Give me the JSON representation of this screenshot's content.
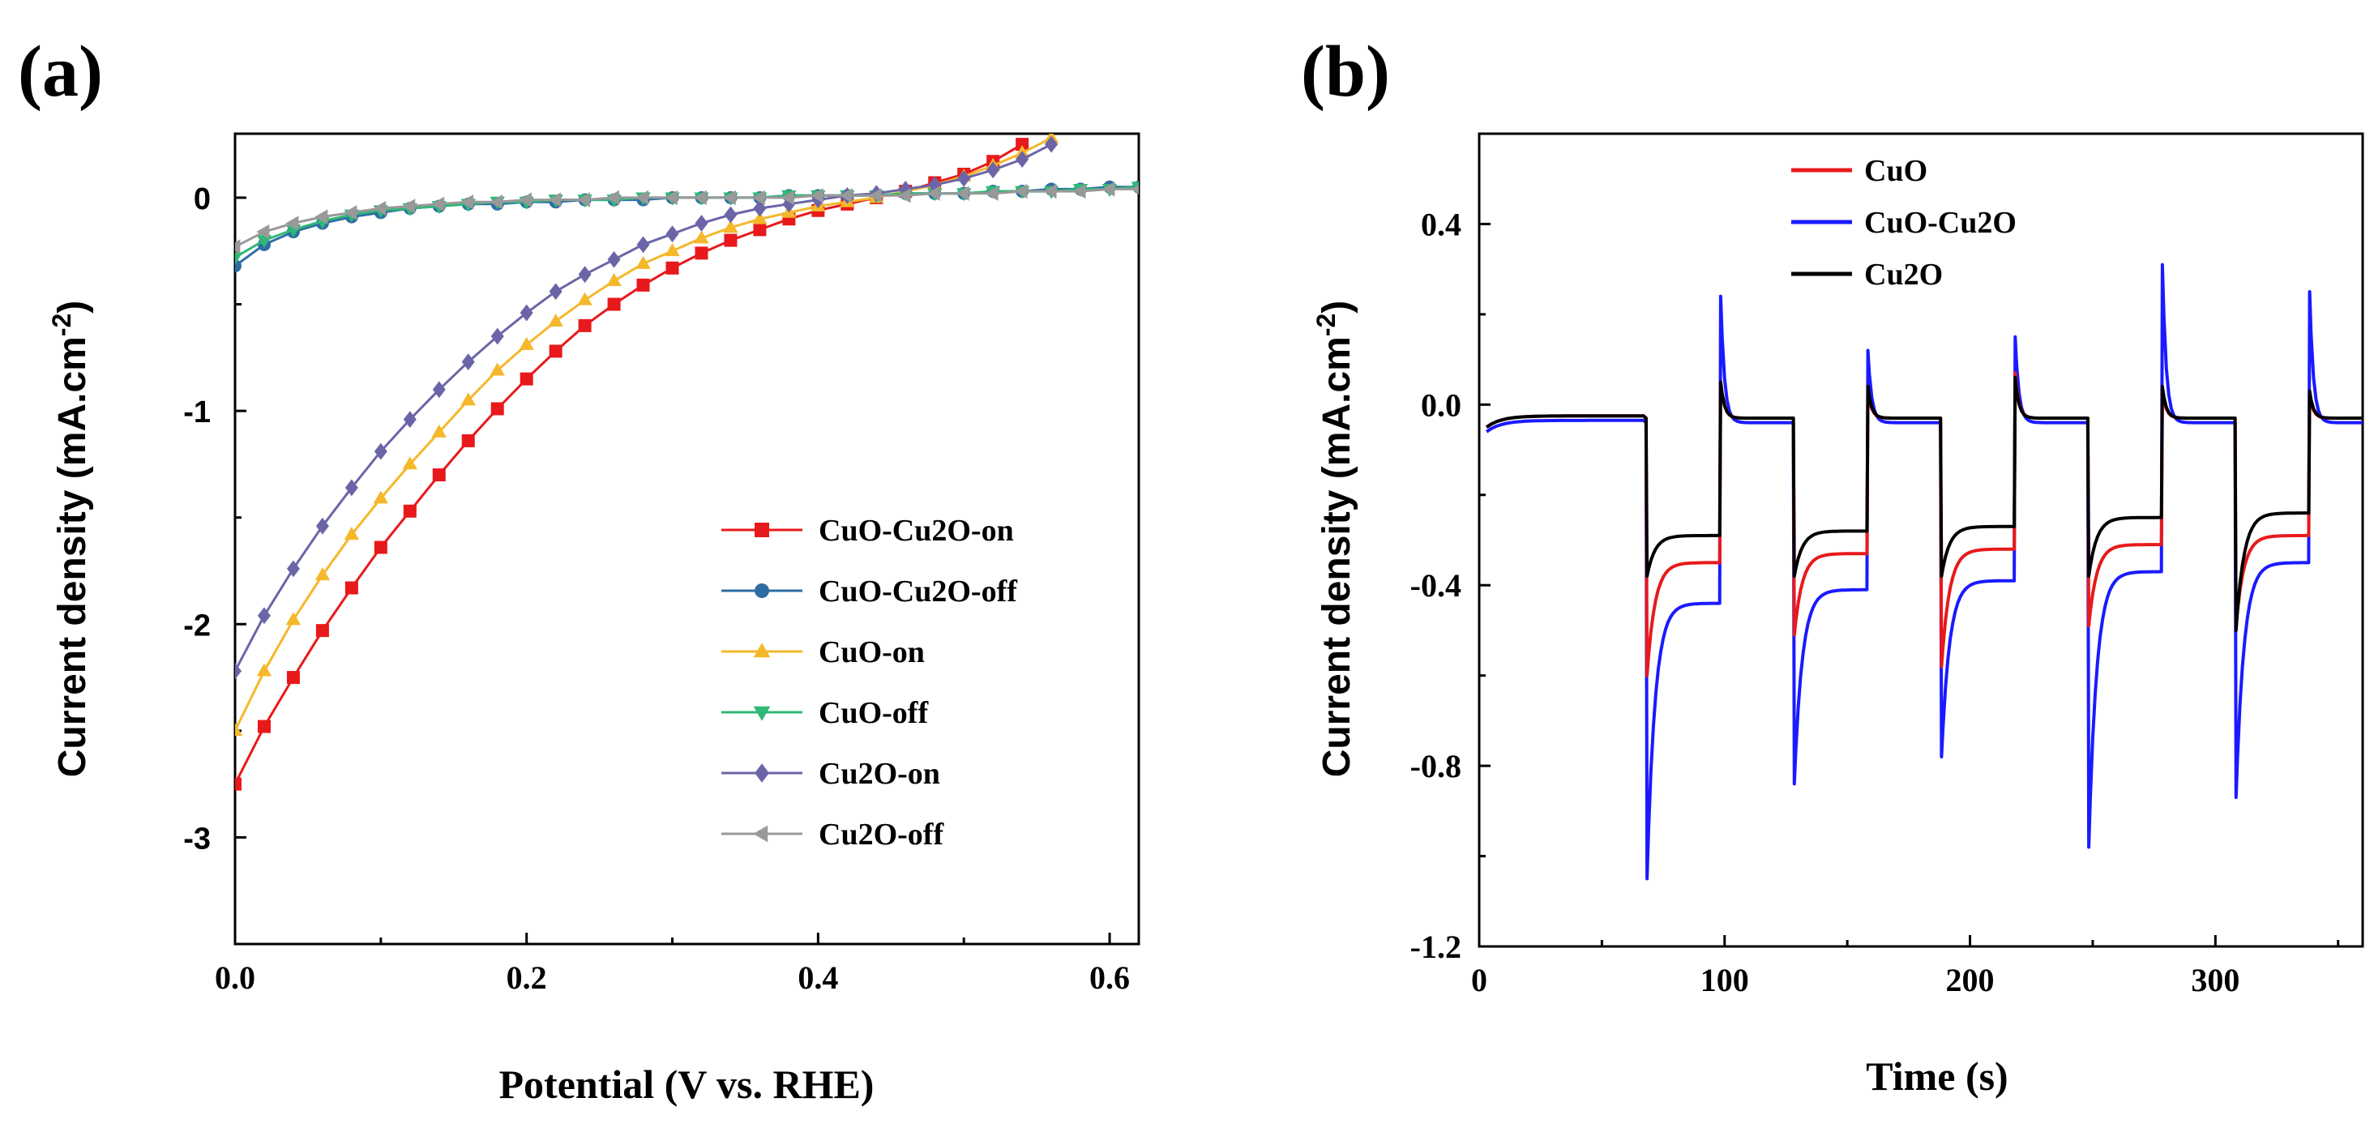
{
  "chart_data": [
    {
      "panel": "(a)",
      "type": "line",
      "title": "",
      "xlabel": "Potential (V vs. RHE)",
      "ylabel": "Current density (mA.cm",
      "ylabel_sup": "-2",
      "ylabel_end": ")",
      "xlim": [
        0.0,
        0.62
      ],
      "ylim": [
        -3.5,
        0.3
      ],
      "xticks": [
        0.0,
        0.2,
        0.4,
        0.6
      ],
      "xtick_labels": [
        "0.0",
        "0.2",
        "0.4",
        "0.6"
      ],
      "yticks": [
        0,
        -1,
        -2,
        -3
      ],
      "ytick_labels": [
        "0",
        "-1",
        "-2",
        "-3"
      ],
      "legend_position": "center-right",
      "series": [
        {
          "name": "CuO-Cu2O-on",
          "color": "#e8191b",
          "marker": "square",
          "x": [
            0.0,
            0.02,
            0.04,
            0.06,
            0.08,
            0.1,
            0.12,
            0.14,
            0.16,
            0.18,
            0.2,
            0.22,
            0.24,
            0.26,
            0.28,
            0.3,
            0.32,
            0.34,
            0.36,
            0.38,
            0.4,
            0.42,
            0.44,
            0.46,
            0.48,
            0.5,
            0.52,
            0.54
          ],
          "y": [
            -2.75,
            -2.48,
            -2.25,
            -2.03,
            -1.83,
            -1.64,
            -1.47,
            -1.3,
            -1.14,
            -0.99,
            -0.85,
            -0.72,
            -0.6,
            -0.5,
            -0.41,
            -0.33,
            -0.26,
            -0.2,
            -0.15,
            -0.1,
            -0.06,
            -0.03,
            0.0,
            0.03,
            0.07,
            0.11,
            0.17,
            0.25
          ]
        },
        {
          "name": "CuO-Cu2O-off",
          "color": "#2e6da4",
          "marker": "circle",
          "x": [
            0.0,
            0.02,
            0.04,
            0.06,
            0.08,
            0.1,
            0.12,
            0.14,
            0.16,
            0.18,
            0.2,
            0.22,
            0.24,
            0.26,
            0.28,
            0.3,
            0.32,
            0.34,
            0.36,
            0.38,
            0.4,
            0.42,
            0.44,
            0.46,
            0.48,
            0.5,
            0.52,
            0.54,
            0.56,
            0.58,
            0.6,
            0.62
          ],
          "y": [
            -0.32,
            -0.22,
            -0.16,
            -0.12,
            -0.09,
            -0.07,
            -0.05,
            -0.04,
            -0.03,
            -0.03,
            -0.02,
            -0.02,
            -0.01,
            -0.01,
            -0.01,
            0.0,
            0.0,
            0.0,
            0.0,
            0.01,
            0.01,
            0.01,
            0.01,
            0.02,
            0.02,
            0.02,
            0.03,
            0.03,
            0.04,
            0.04,
            0.05,
            0.05
          ]
        },
        {
          "name": "CuO-on",
          "color": "#f5b82b",
          "marker": "triangle-up",
          "x": [
            0.0,
            0.02,
            0.04,
            0.06,
            0.08,
            0.1,
            0.12,
            0.14,
            0.16,
            0.18,
            0.2,
            0.22,
            0.24,
            0.26,
            0.28,
            0.3,
            0.32,
            0.34,
            0.36,
            0.38,
            0.4,
            0.42,
            0.44,
            0.46,
            0.48,
            0.5,
            0.52,
            0.54,
            0.56
          ],
          "y": [
            -2.5,
            -2.22,
            -1.98,
            -1.77,
            -1.58,
            -1.41,
            -1.25,
            -1.1,
            -0.95,
            -0.81,
            -0.69,
            -0.58,
            -0.48,
            -0.39,
            -0.31,
            -0.25,
            -0.19,
            -0.14,
            -0.1,
            -0.07,
            -0.04,
            -0.02,
            0.0,
            0.03,
            0.06,
            0.1,
            0.15,
            0.21,
            0.28
          ]
        },
        {
          "name": "CuO-off",
          "color": "#2fb877",
          "marker": "triangle-down",
          "x": [
            0.0,
            0.02,
            0.04,
            0.06,
            0.08,
            0.1,
            0.12,
            0.14,
            0.16,
            0.18,
            0.2,
            0.22,
            0.24,
            0.26,
            0.28,
            0.3,
            0.32,
            0.34,
            0.36,
            0.38,
            0.4,
            0.42,
            0.44,
            0.46,
            0.48,
            0.5,
            0.52,
            0.54,
            0.56,
            0.58,
            0.6,
            0.62
          ],
          "y": [
            -0.28,
            -0.2,
            -0.15,
            -0.11,
            -0.08,
            -0.06,
            -0.05,
            -0.04,
            -0.03,
            -0.02,
            -0.02,
            -0.01,
            -0.01,
            -0.01,
            0.0,
            0.0,
            0.0,
            0.0,
            0.0,
            0.01,
            0.01,
            0.01,
            0.01,
            0.02,
            0.02,
            0.02,
            0.03,
            0.03,
            0.03,
            0.04,
            0.04,
            0.05
          ]
        },
        {
          "name": "Cu2O-on",
          "color": "#6b65a8",
          "marker": "diamond",
          "x": [
            0.0,
            0.02,
            0.04,
            0.06,
            0.08,
            0.1,
            0.12,
            0.14,
            0.16,
            0.18,
            0.2,
            0.22,
            0.24,
            0.26,
            0.28,
            0.3,
            0.32,
            0.34,
            0.36,
            0.38,
            0.4,
            0.42,
            0.44,
            0.46,
            0.48,
            0.5,
            0.52,
            0.54,
            0.56
          ],
          "y": [
            -2.22,
            -1.96,
            -1.74,
            -1.54,
            -1.36,
            -1.19,
            -1.04,
            -0.9,
            -0.77,
            -0.65,
            -0.54,
            -0.44,
            -0.36,
            -0.29,
            -0.22,
            -0.17,
            -0.12,
            -0.08,
            -0.05,
            -0.03,
            -0.01,
            0.01,
            0.02,
            0.04,
            0.06,
            0.09,
            0.13,
            0.18,
            0.25
          ]
        },
        {
          "name": "Cu2O-off",
          "color": "#999999",
          "marker": "triangle-left",
          "x": [
            0.0,
            0.02,
            0.04,
            0.06,
            0.08,
            0.1,
            0.12,
            0.14,
            0.16,
            0.18,
            0.2,
            0.22,
            0.24,
            0.26,
            0.28,
            0.3,
            0.32,
            0.34,
            0.36,
            0.38,
            0.4,
            0.42,
            0.44,
            0.46,
            0.48,
            0.5,
            0.52,
            0.54,
            0.56,
            0.58,
            0.6,
            0.62
          ],
          "y": [
            -0.23,
            -0.16,
            -0.12,
            -0.09,
            -0.07,
            -0.05,
            -0.04,
            -0.03,
            -0.02,
            -0.02,
            -0.01,
            -0.01,
            -0.01,
            0.0,
            0.0,
            0.0,
            0.0,
            0.0,
            0.0,
            0.0,
            0.01,
            0.01,
            0.01,
            0.01,
            0.02,
            0.02,
            0.02,
            0.03,
            0.03,
            0.03,
            0.04,
            0.04
          ]
        }
      ]
    },
    {
      "panel": "(b)",
      "type": "line",
      "title": "",
      "xlabel": "Time (s)",
      "ylabel": "Current density (mA.cm",
      "ylabel_sup": "-2",
      "ylabel_end": ")",
      "xlim": [
        0,
        360
      ],
      "ylim": [
        -1.2,
        0.6
      ],
      "xticks": [
        0,
        100,
        200,
        300
      ],
      "xtick_labels": [
        "0",
        "100",
        "200",
        "300"
      ],
      "yticks": [
        0.4,
        0.0,
        -0.4,
        -0.8,
        -1.2
      ],
      "ytick_labels": [
        "0.4",
        "0.0",
        "-0.4",
        "-0.8",
        "-1.2"
      ],
      "legend_position": "top-center",
      "light_on_times": [
        68,
        128,
        188,
        248,
        308
      ],
      "light_off_times": [
        98,
        158,
        218,
        278,
        338
      ],
      "series": [
        {
          "name": "CuO",
          "color": "#e8191b",
          "dark_current": -0.03,
          "on_spikes": [
            -0.6,
            -0.51,
            -0.58,
            -0.49,
            -0.49
          ],
          "on_plateaus": [
            -0.35,
            -0.33,
            -0.32,
            -0.31,
            -0.29
          ],
          "off_spikes": [
            0.05,
            0.03,
            0.07,
            0.03,
            0.02
          ]
        },
        {
          "name": "CuO-Cu2O",
          "color": "#1a1aff",
          "dark_current": -0.04,
          "on_spikes": [
            -1.05,
            -0.84,
            -0.78,
            -0.98,
            -0.87
          ],
          "on_plateaus": [
            -0.44,
            -0.41,
            -0.39,
            -0.37,
            -0.35
          ],
          "off_spikes": [
            0.24,
            0.12,
            0.15,
            0.31,
            0.25
          ]
        },
        {
          "name": "Cu2O",
          "color": "#000000",
          "dark_current": -0.03,
          "on_spikes": [
            -0.38,
            -0.38,
            -0.38,
            -0.38,
            -0.5
          ],
          "on_plateaus": [
            -0.29,
            -0.28,
            -0.27,
            -0.25,
            -0.24
          ],
          "off_spikes": [
            0.05,
            0.04,
            0.06,
            0.04,
            0.03
          ]
        }
      ]
    }
  ]
}
